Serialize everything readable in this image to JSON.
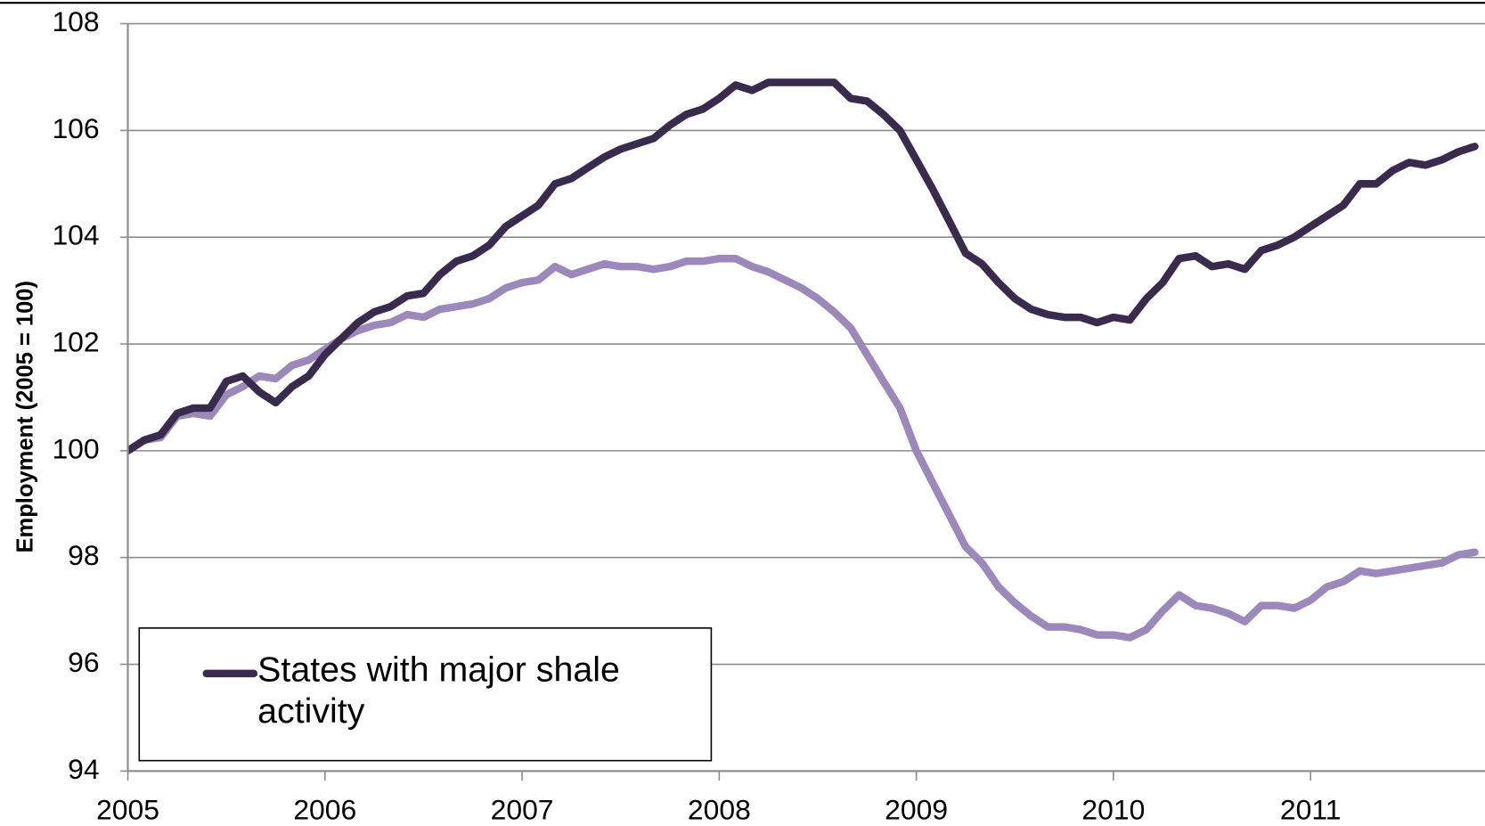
{
  "chart_data": {
    "type": "line",
    "y_label": "Employment (2005 = 100)",
    "x": [
      2005,
      2005.083,
      2005.167,
      2005.25,
      2005.333,
      2005.417,
      2005.5,
      2005.583,
      2005.667,
      2005.75,
      2005.833,
      2005.917,
      2006,
      2006.083,
      2006.167,
      2006.25,
      2006.333,
      2006.417,
      2006.5,
      2006.583,
      2006.667,
      2006.75,
      2006.833,
      2006.917,
      2007,
      2007.083,
      2007.167,
      2007.25,
      2007.333,
      2007.417,
      2007.5,
      2007.583,
      2007.667,
      2007.75,
      2007.833,
      2007.917,
      2008,
      2008.083,
      2008.167,
      2008.25,
      2008.333,
      2008.417,
      2008.5,
      2008.583,
      2008.667,
      2008.75,
      2008.833,
      2008.917,
      2009,
      2009.083,
      2009.167,
      2009.25,
      2009.333,
      2009.417,
      2009.5,
      2009.583,
      2009.667,
      2009.75,
      2009.833,
      2009.917,
      2010,
      2010.083,
      2010.167,
      2010.25,
      2010.333,
      2010.417,
      2010.5,
      2010.583,
      2010.667,
      2010.75,
      2010.833,
      2010.917,
      2011,
      2011.083,
      2011.167,
      2011.25,
      2011.333,
      2011.417,
      2011.5,
      2011.583,
      2011.667,
      2011.75,
      2011.833
    ],
    "series": [
      {
        "name": "States with major shale activity",
        "color": "#3a2a4e",
        "values": [
          100.0,
          100.2,
          100.3,
          100.7,
          100.8,
          100.8,
          101.3,
          101.4,
          101.1,
          100.9,
          101.2,
          101.4,
          101.8,
          102.1,
          102.4,
          102.6,
          102.7,
          102.9,
          102.95,
          103.3,
          103.55,
          103.65,
          103.85,
          104.2,
          104.4,
          104.6,
          105.0,
          105.1,
          105.3,
          105.5,
          105.65,
          105.75,
          105.85,
          106.1,
          106.3,
          106.4,
          106.6,
          106.85,
          106.75,
          106.9,
          106.9,
          106.9,
          106.9,
          106.9,
          106.6,
          106.55,
          106.3,
          106.0,
          105.45,
          104.9,
          104.3,
          103.7,
          103.5,
          103.15,
          102.85,
          102.65,
          102.55,
          102.5,
          102.5,
          102.4,
          102.5,
          102.45,
          102.85,
          103.15,
          103.6,
          103.65,
          103.45,
          103.5,
          103.4,
          103.75,
          103.85,
          104.0,
          104.2,
          104.4,
          104.6,
          105.0,
          105.0,
          105.25,
          105.4,
          105.35,
          105.45,
          105.6,
          105.7
        ]
      },
      {
        "color": "#9d88bb",
        "values": [
          100.0,
          100.2,
          100.25,
          100.65,
          100.7,
          100.65,
          101.05,
          101.2,
          101.4,
          101.35,
          101.6,
          101.7,
          101.9,
          102.1,
          102.25,
          102.35,
          102.4,
          102.55,
          102.5,
          102.65,
          102.7,
          102.75,
          102.85,
          103.05,
          103.15,
          103.2,
          103.45,
          103.3,
          103.4,
          103.5,
          103.45,
          103.45,
          103.4,
          103.45,
          103.55,
          103.55,
          103.6,
          103.6,
          103.45,
          103.35,
          103.2,
          103.05,
          102.85,
          102.6,
          102.3,
          101.8,
          101.3,
          100.8,
          100.0,
          99.4,
          98.8,
          98.2,
          97.9,
          97.45,
          97.15,
          96.9,
          96.7,
          96.7,
          96.65,
          96.55,
          96.55,
          96.5,
          96.65,
          97.0,
          97.3,
          97.1,
          97.05,
          96.95,
          96.8,
          97.1,
          97.1,
          97.05,
          97.2,
          97.45,
          97.55,
          97.75,
          97.7,
          97.75,
          97.8,
          97.85,
          97.9,
          98.05,
          98.1
        ]
      }
    ],
    "xlim": [
      2005,
      2011.885
    ],
    "xticks": [
      2005,
      2006,
      2007,
      2008,
      2009,
      2010,
      2011
    ],
    "ylim": [
      94,
      108
    ],
    "yticks": [
      94,
      96,
      98,
      100,
      102,
      104,
      106,
      108
    ],
    "grid": true,
    "legend": "lower left"
  }
}
